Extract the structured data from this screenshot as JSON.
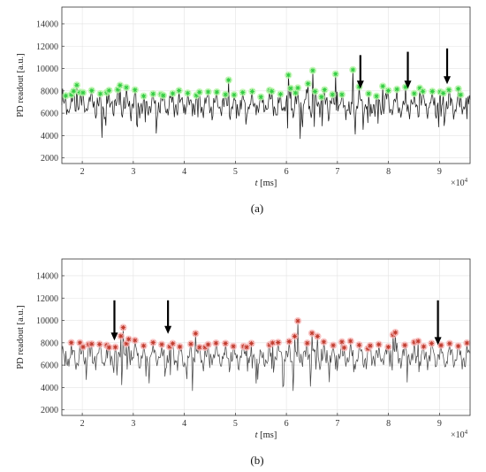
{
  "chart_data": [
    {
      "type": "line",
      "panel_label": "(a)",
      "ylabel": "PD readout [a.u.]",
      "xlabel_italic": "t",
      "xlabel_unit": " [ms]",
      "x_exponent_base": "×10",
      "x_exponent_power": "4",
      "xlim": [
        1.6,
        9.6
      ],
      "ylim": [
        1500,
        15500
      ],
      "x_ticks": [
        2,
        3,
        4,
        5,
        6,
        7,
        8,
        9
      ],
      "y_ticks": [
        2000,
        4000,
        6000,
        8000,
        10000,
        12000,
        14000
      ],
      "signal_baseline": 6800,
      "signal_range": [
        3700,
        10300
      ],
      "peak_marker_color": "#2ecc40",
      "peak_marker_glow": "#b6f5a8",
      "arrow_x": [
        7.45,
        8.38,
        9.15
      ],
      "arrow_y_tail": [
        11200,
        11500,
        11800
      ],
      "arrow_y_head": [
        8200,
        8200,
        8600
      ]
    },
    {
      "type": "line",
      "panel_label": "(b)",
      "ylabel": "PD readout [a.u.]",
      "xlabel_italic": "t",
      "xlabel_unit": " [ms]",
      "x_exponent_base": "×10",
      "x_exponent_power": "4",
      "xlim": [
        1.6,
        9.6
      ],
      "ylim": [
        1500,
        15500
      ],
      "x_ticks": [
        2,
        3,
        4,
        5,
        6,
        7,
        8,
        9
      ],
      "y_ticks": [
        2000,
        4000,
        6000,
        8000,
        10000,
        12000,
        14000
      ],
      "signal_baseline": 6800,
      "signal_range": [
        3700,
        10300
      ],
      "peak_marker_color": "#c0392b",
      "peak_marker_glow": "#f7b6b6",
      "arrow_x": [
        2.63,
        3.68,
        8.97
      ],
      "arrow_y_tail": [
        11800,
        11800,
        11800
      ],
      "arrow_y_head": [
        8200,
        8800,
        7800
      ]
    }
  ]
}
